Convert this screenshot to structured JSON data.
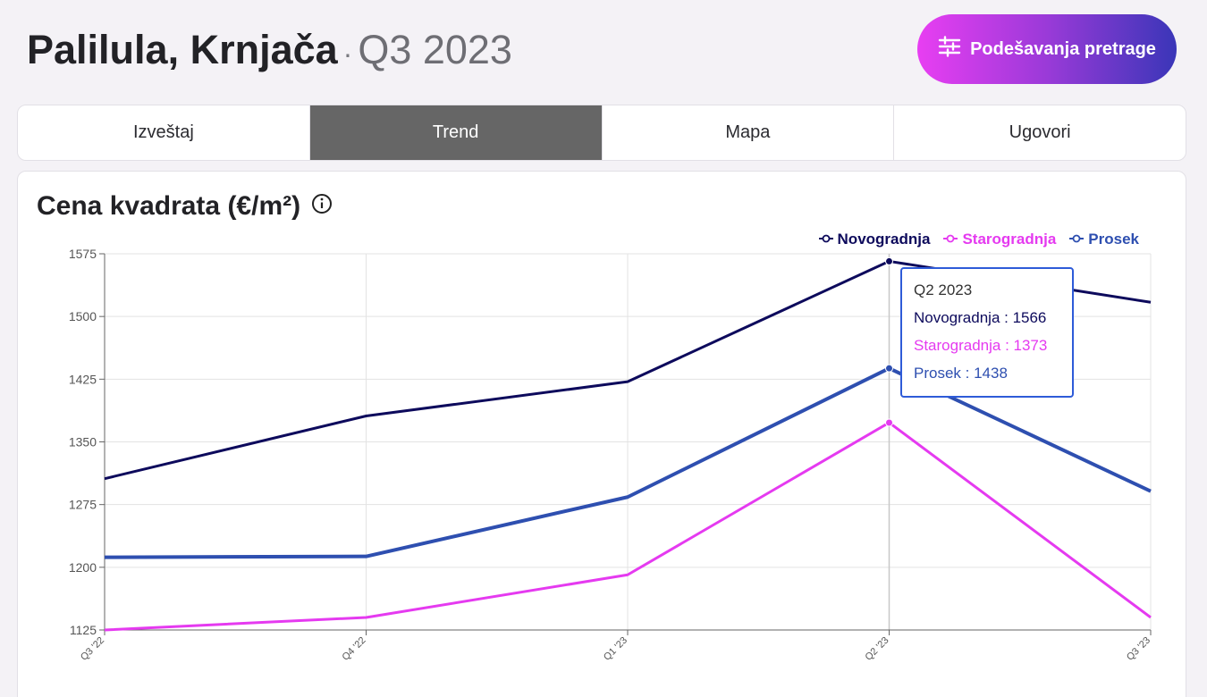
{
  "header": {
    "location": "Palilula, Krnjača",
    "separator": "·",
    "period": "Q3 2023",
    "settings_label": "Podešavanja pretrage"
  },
  "tabs": [
    {
      "label": "Izveštaj",
      "active": false
    },
    {
      "label": "Trend",
      "active": true
    },
    {
      "label": "Mapa",
      "active": false
    },
    {
      "label": "Ugovori",
      "active": false
    }
  ],
  "card": {
    "title": "Cena kvadrata (€/m²)",
    "info_icon": "info-circle-icon"
  },
  "tooltip": {
    "title": "Q2 2023",
    "lines": [
      {
        "text": "Novogradnja : 1566"
      },
      {
        "text": "Starogradnja : 1373"
      },
      {
        "text": "Prosek : 1438"
      }
    ]
  },
  "chart_data": {
    "type": "line",
    "x": [
      "Q3 '22",
      "Q4 '22",
      "Q1 '23",
      "Q2 '23",
      "Q3 '23"
    ],
    "ylim": [
      1125,
      1575
    ],
    "yticks": [
      1125,
      1200,
      1275,
      1350,
      1425,
      1500,
      1575
    ],
    "grid": true,
    "legend_position": "top-right",
    "highlighted_category": "Q2 '23",
    "series": [
      {
        "name": "Novogradnja",
        "color": "#0d0a5c",
        "values": [
          1306,
          1381,
          1422,
          1566,
          1517
        ]
      },
      {
        "name": "Starogradnja",
        "color": "#e53af0",
        "values": [
          1125,
          1140,
          1191,
          1373,
          1140
        ]
      },
      {
        "name": "Prosek",
        "color": "#2e4fb0",
        "values": [
          1212,
          1213,
          1284,
          1438,
          1291
        ]
      }
    ]
  }
}
